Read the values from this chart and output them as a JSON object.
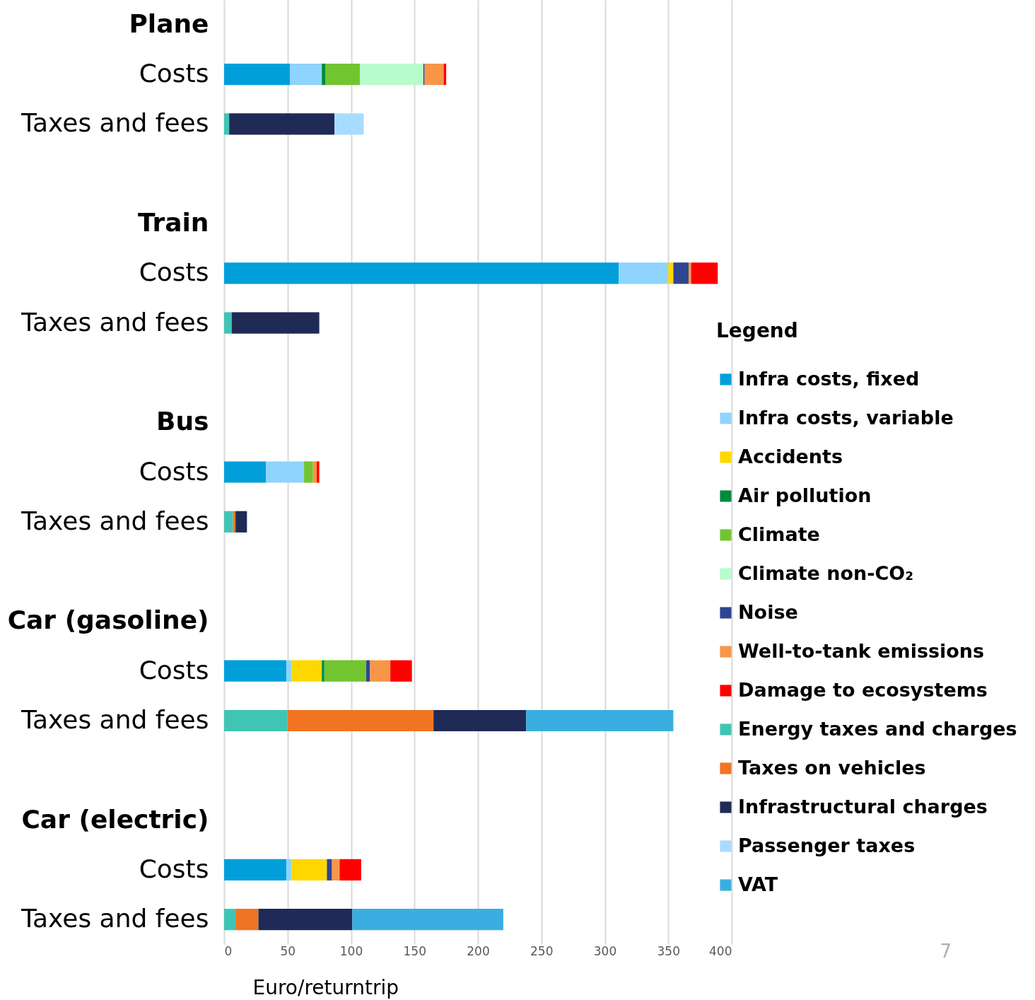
{
  "chart_data": {
    "type": "bar",
    "orientation": "horizontal",
    "stacked": true,
    "categories": [
      "Plane",
      "Costs",
      "Taxes and fees",
      null,
      "Train",
      "Costs",
      "Taxes and fees",
      null,
      "Bus",
      "Costs",
      "Taxes and fees",
      null,
      "Car (gasoline)",
      "Costs",
      "Taxes and fees",
      null,
      "Car (electric)",
      "Costs",
      "Taxes and fees"
    ],
    "series": [
      {
        "name": "Infra costs, fixed",
        "color": "#009fda",
        "values": [
          null,
          52,
          null,
          null,
          null,
          311,
          null,
          null,
          null,
          33,
          null,
          null,
          null,
          49,
          null,
          null,
          null,
          49,
          null
        ]
      },
      {
        "name": "Infra costs, variable",
        "color": "#8fd3ff",
        "values": [
          null,
          25,
          null,
          null,
          null,
          39,
          null,
          null,
          null,
          30,
          null,
          null,
          null,
          4,
          null,
          null,
          null,
          4,
          null
        ]
      },
      {
        "name": "Accidents",
        "color": "#ffd700",
        "values": [
          null,
          null,
          null,
          null,
          null,
          4,
          null,
          null,
          null,
          null,
          null,
          null,
          null,
          24,
          null,
          null,
          null,
          28,
          null
        ]
      },
      {
        "name": "Air pollution",
        "color": "#008a3e",
        "values": [
          null,
          3,
          null,
          null,
          null,
          null,
          null,
          null,
          null,
          null,
          null,
          null,
          null,
          2,
          null,
          null,
          null,
          null,
          null
        ]
      },
      {
        "name": "Climate",
        "color": "#72c531",
        "values": [
          null,
          27,
          null,
          null,
          null,
          null,
          null,
          null,
          null,
          7,
          null,
          null,
          null,
          33,
          null,
          null,
          null,
          null,
          null
        ]
      },
      {
        "name": "Climate non-CO₂",
        "color": "#b7fccc",
        "values": [
          null,
          50,
          null,
          null,
          null,
          null,
          null,
          null,
          null,
          null,
          null,
          null,
          null,
          null,
          null,
          null,
          null,
          null,
          null
        ]
      },
      {
        "name": "Noise",
        "color": "#2e4593",
        "values": [
          null,
          1,
          null,
          null,
          null,
          12,
          null,
          null,
          null,
          null,
          null,
          null,
          null,
          3,
          null,
          null,
          null,
          4,
          null
        ]
      },
      {
        "name": "Well-to-tank emissions",
        "color": "#f79646",
        "values": [
          null,
          15,
          null,
          null,
          null,
          2,
          null,
          null,
          null,
          3,
          null,
          null,
          null,
          16,
          null,
          null,
          null,
          6,
          null
        ]
      },
      {
        "name": "Damage to ecosystems",
        "color": "#ff0000",
        "values": [
          null,
          2,
          null,
          null,
          null,
          21,
          null,
          null,
          null,
          2,
          null,
          null,
          null,
          17,
          null,
          null,
          null,
          17,
          null
        ]
      },
      {
        "name": "Energy taxes and charges",
        "color": "#40c4b4",
        "values": [
          null,
          null,
          4,
          null,
          null,
          null,
          6,
          null,
          null,
          null,
          7,
          null,
          null,
          null,
          50,
          null,
          null,
          null,
          9
        ]
      },
      {
        "name": "Taxes on vehicles",
        "color": "#f07422",
        "values": [
          null,
          null,
          null,
          null,
          null,
          null,
          null,
          null,
          null,
          null,
          2,
          null,
          null,
          null,
          115,
          null,
          null,
          null,
          18
        ]
      },
      {
        "name": "Infrastructural charges",
        "color": "#1f2b56",
        "values": [
          null,
          null,
          83,
          null,
          null,
          null,
          69,
          null,
          null,
          null,
          9,
          null,
          null,
          null,
          73,
          null,
          null,
          null,
          74
        ]
      },
      {
        "name": "Passenger taxes",
        "color": "#a8dcff",
        "values": [
          null,
          null,
          23,
          null,
          null,
          null,
          null,
          null,
          null,
          null,
          null,
          null,
          null,
          null,
          null,
          null,
          null,
          null,
          null
        ]
      },
      {
        "name": "VAT",
        "color": "#3aaee0",
        "values": [
          null,
          null,
          null,
          null,
          null,
          null,
          null,
          null,
          null,
          null,
          null,
          null,
          null,
          null,
          116,
          null,
          null,
          null,
          119
        ]
      }
    ],
    "xlim": [
      0,
      400
    ],
    "xticks": [
      0,
      50,
      100,
      150,
      200,
      250,
      300,
      350,
      400
    ],
    "xlabel": "Euro/returntrip",
    "legend_title": "Legend",
    "legend": "right",
    "grid": "x",
    "annotations": [
      "7"
    ]
  }
}
